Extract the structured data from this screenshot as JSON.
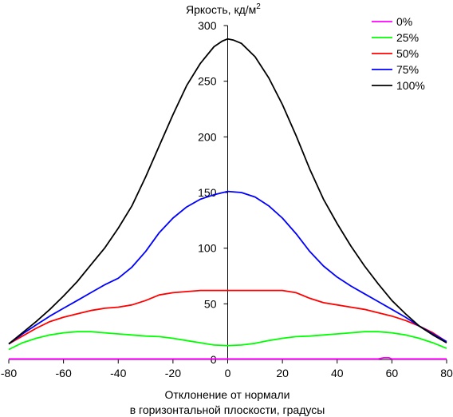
{
  "chart_data": {
    "type": "line",
    "title": "",
    "ylabel": "Яркость, кд/м",
    "ylabel_sup": "2",
    "xlabel_line1": "Отклонение от нормали",
    "xlabel_line2": "в горизонтальной плоскости, градусы",
    "xlim": [
      -80,
      80
    ],
    "ylim": [
      0,
      300
    ],
    "xticks": [
      -80,
      -60,
      -40,
      -20,
      0,
      20,
      40,
      60,
      80
    ],
    "yticks": [
      0,
      50,
      100,
      150,
      200,
      250,
      300
    ],
    "grid": false,
    "legend_position": "top-right",
    "series": [
      {
        "name": "0%",
        "color": "#ff00ff",
        "x": [
          -80,
          -60,
          -40,
          -20,
          0,
          20,
          40,
          55,
          57,
          59,
          60,
          80
        ],
        "y": [
          0.5,
          0.5,
          0.5,
          0.5,
          0.5,
          0.5,
          0.5,
          0.5,
          1.5,
          1.5,
          0.5,
          0.5
        ]
      },
      {
        "name": "25%",
        "color": "#00ff00",
        "x": [
          -80,
          -75,
          -70,
          -65,
          -60,
          -55,
          -50,
          -45,
          -40,
          -35,
          -30,
          -25,
          -20,
          -15,
          -10,
          -5,
          0,
          5,
          10,
          15,
          20,
          25,
          30,
          35,
          40,
          45,
          50,
          55,
          60,
          65,
          70,
          75,
          80
        ],
        "y": [
          9,
          15,
          19,
          22,
          24,
          25,
          25,
          24,
          23,
          22,
          21,
          20.5,
          19,
          17,
          15,
          13,
          12.5,
          13,
          14.5,
          17,
          19,
          20.5,
          21,
          22,
          23,
          24,
          25,
          25,
          24,
          22,
          19,
          15,
          10
        ]
      },
      {
        "name": "50%",
        "color": "#ff0000",
        "x": [
          -80,
          -75,
          -70,
          -65,
          -60,
          -55,
          -50,
          -45,
          -40,
          -35,
          -30,
          -25,
          -20,
          -15,
          -10,
          -5,
          0,
          5,
          10,
          15,
          20,
          25,
          30,
          35,
          40,
          45,
          50,
          55,
          60,
          65,
          70,
          75,
          80
        ],
        "y": [
          14,
          21,
          28,
          34,
          38,
          41,
          44,
          46,
          47,
          49,
          53,
          58,
          60,
          61,
          62,
          62,
          62,
          62,
          62,
          62,
          62,
          60,
          55,
          51,
          49,
          47,
          45,
          42,
          39,
          35,
          30,
          24,
          16
        ]
      },
      {
        "name": "75%",
        "color": "#0000ff",
        "x": [
          -80,
          -75,
          -70,
          -65,
          -60,
          -55,
          -50,
          -45,
          -40,
          -35,
          -30,
          -25,
          -20,
          -15,
          -10,
          -5,
          0,
          5,
          10,
          15,
          20,
          25,
          30,
          35,
          40,
          45,
          50,
          55,
          60,
          65,
          70,
          75,
          80
        ],
        "y": [
          14,
          23,
          31,
          39,
          46,
          53,
          60,
          67,
          73,
          83,
          97,
          114,
          127,
          137,
          144,
          148,
          151,
          150,
          146,
          138,
          127,
          113,
          97,
          84,
          74,
          66,
          59,
          52,
          45,
          38,
          30,
          23,
          16
        ]
      },
      {
        "name": "100%",
        "color": "#000000",
        "x": [
          -80,
          -75,
          -70,
          -65,
          -60,
          -55,
          -50,
          -45,
          -40,
          -35,
          -30,
          -25,
          -20,
          -15,
          -10,
          -5,
          -2,
          0,
          2,
          5,
          10,
          15,
          20,
          25,
          30,
          35,
          40,
          45,
          50,
          55,
          60,
          65,
          70,
          75,
          80
        ],
        "y": [
          14,
          24,
          34,
          45,
          57,
          70,
          85,
          100,
          118,
          138,
          164,
          192,
          220,
          246,
          266,
          281,
          286,
          288,
          287,
          284,
          272,
          253,
          229,
          201,
          171,
          144,
          122,
          102,
          84,
          68,
          53,
          41,
          30,
          22,
          15
        ]
      }
    ]
  }
}
